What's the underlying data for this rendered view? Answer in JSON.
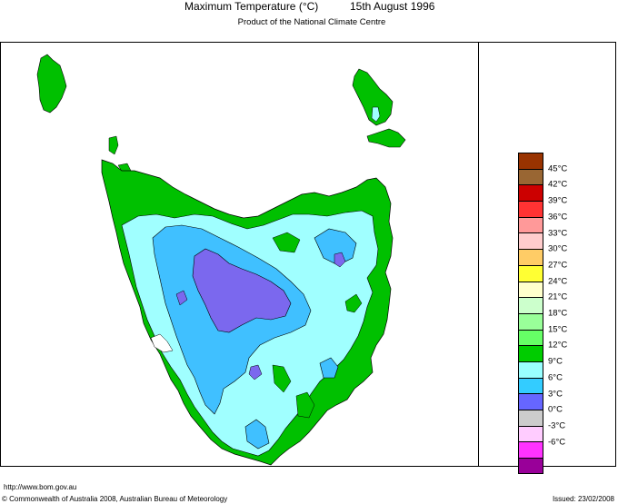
{
  "header": {
    "title": "Maximum Temperature (°C)",
    "date": "15th August 1996",
    "subtitle": "Product of the National Climate Centre"
  },
  "map": {
    "region": "Tasmania",
    "variable": "Maximum Temperature",
    "colors": {
      "land_12_15": "#00c000",
      "band_9_12": "#a0ffff",
      "band_6_9": "#40c0ff",
      "band_3_6": "#7b68ee",
      "outline": "#000000"
    }
  },
  "legend": {
    "items": [
      {
        "label": "45°C",
        "color": "#993300"
      },
      {
        "label": "42°C",
        "color": "#996633"
      },
      {
        "label": "39°C",
        "color": "#cc0000"
      },
      {
        "label": "36°C",
        "color": "#ff3333"
      },
      {
        "label": "33°C",
        "color": "#ff9999"
      },
      {
        "label": "30°C",
        "color": "#ffcccc"
      },
      {
        "label": "27°C",
        "color": "#ffcc66"
      },
      {
        "label": "24°C",
        "color": "#ffff33"
      },
      {
        "label": "21°C",
        "color": "#ffffcc"
      },
      {
        "label": "18°C",
        "color": "#ccffcc"
      },
      {
        "label": "15°C",
        "color": "#99ff99"
      },
      {
        "label": "12°C",
        "color": "#66ff66"
      },
      {
        "label": "9°C",
        "color": "#00cc00"
      },
      {
        "label": "6°C",
        "color": "#99ffff"
      },
      {
        "label": "3°C",
        "color": "#33ccff"
      },
      {
        "label": "0°C",
        "color": "#6666ff"
      },
      {
        "label": "-3°C",
        "color": "#cccccc"
      },
      {
        "label": "-6°C",
        "color": "#ffccff"
      },
      {
        "label": "",
        "color": "#ff33ff"
      },
      {
        "label": "",
        "color": "#990099"
      }
    ]
  },
  "footer": {
    "url": "http://www.bom.gov.au",
    "copyright": "© Commonwealth of Australia 2008, Australian Bureau of Meteorology",
    "issued": "Issued: 23/02/2008"
  }
}
